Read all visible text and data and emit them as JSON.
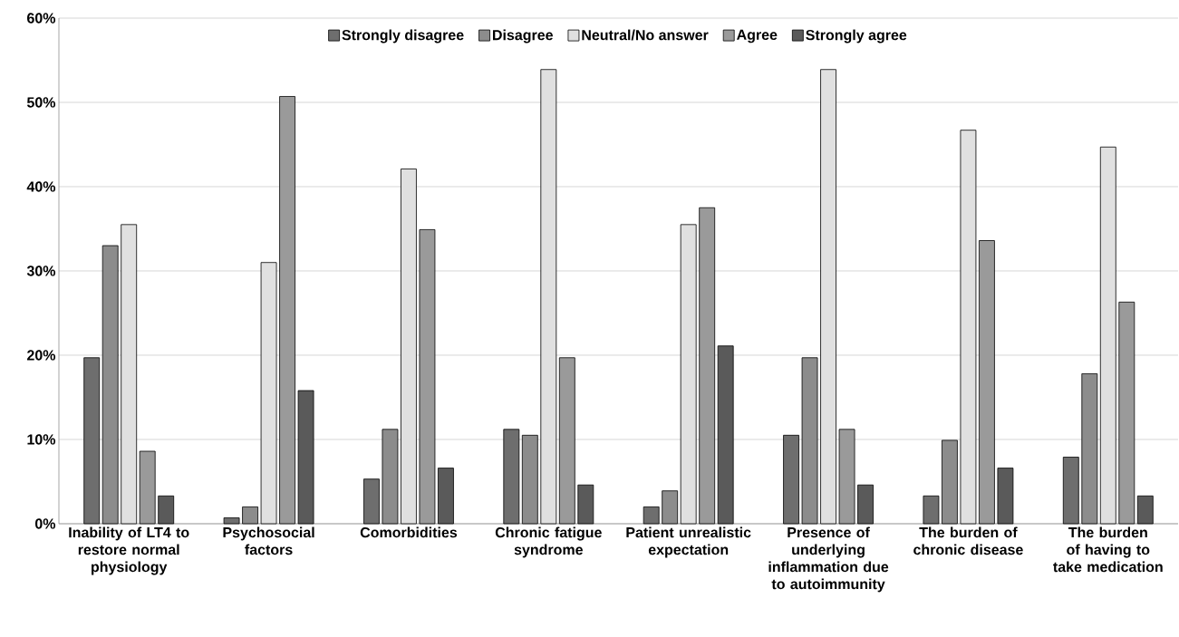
{
  "chart_data": {
    "type": "bar",
    "categories": [
      "Inability of LT4 to restore normal physiology",
      "Psychosocial factors",
      "Comorbidities",
      "Chronic fatigue syndrome",
      "Patient unrealistic expectation",
      "Presence of underlying inflammation due to autoimmunity",
      "The burden of chronic disease",
      "The burden of having to take medication"
    ],
    "series": [
      {
        "name": "Strongly disagree",
        "color": "#6e6e6e",
        "values": [
          19.7,
          0.7,
          5.3,
          11.2,
          2.0,
          10.5,
          3.3,
          7.9
        ]
      },
      {
        "name": "Disagree",
        "color": "#8c8c8c",
        "values": [
          33.0,
          2.0,
          11.2,
          10.5,
          3.9,
          19.7,
          9.9,
          17.8
        ]
      },
      {
        "name": "Neutral/No answer",
        "color": "#e0e0e0",
        "values": [
          35.5,
          31.0,
          42.1,
          53.9,
          35.5,
          53.9,
          46.7,
          44.7
        ]
      },
      {
        "name": "Agree",
        "color": "#9a9a9a",
        "values": [
          8.6,
          50.7,
          34.9,
          19.7,
          37.5,
          11.2,
          33.6,
          26.3
        ]
      },
      {
        "name": "Strongly agree",
        "color": "#5a5a5a",
        "values": [
          3.3,
          15.8,
          6.6,
          4.6,
          21.1,
          4.6,
          6.6,
          3.3
        ]
      }
    ],
    "ylim": [
      0,
      60
    ],
    "yticks": [
      {
        "value": 0,
        "label": "0%"
      },
      {
        "value": 10,
        "label": "10%"
      },
      {
        "value": 20,
        "label": "20%"
      },
      {
        "value": 30,
        "label": "30%"
      },
      {
        "value": 40,
        "label": "40%"
      },
      {
        "value": 50,
        "label": "50%"
      },
      {
        "value": 60,
        "label": "60%"
      }
    ],
    "grid": "y",
    "legend": "top"
  }
}
